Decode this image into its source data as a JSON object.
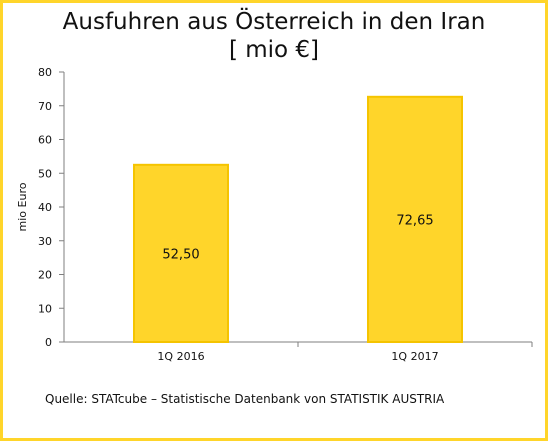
{
  "chart_data": {
    "type": "bar",
    "title_line1": "Ausfuhren aus Österreich  in den Iran",
    "title_line2": "[ mio €]",
    "ylabel": "mio Euro",
    "xlabel": "",
    "categories": [
      "1Q 2016",
      "1Q 2017"
    ],
    "values": [
      52.5,
      72.65
    ],
    "value_labels": [
      "52,50",
      "72,65"
    ],
    "ylim": [
      0,
      80
    ],
    "yticks": [
      0,
      10,
      20,
      30,
      40,
      50,
      60,
      70,
      80
    ],
    "grid": false,
    "legend": "none"
  },
  "source": "Quelle: STATcube – Statistische Datenbank von STATISTIK AUSTRIA",
  "colors": {
    "bar": "#ffd52a",
    "bar_edge": "#f5c400",
    "border": "#ffd52a",
    "axis": "#7f7f7f"
  }
}
